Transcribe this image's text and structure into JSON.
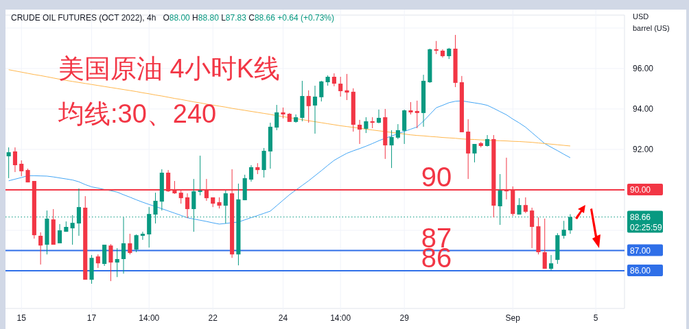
{
  "chart_data": {
    "type": "candlestick",
    "title": "CRUDE OIL FUTURES (OCT 2022), 4h",
    "subtitle": "O88.00 H88.80 L87.83 C88.66 +0.64 (+0.73%)",
    "ylabel": "USD barrel (US)",
    "annotations": [
      "美国原油 4小时K线",
      "均线:30、240",
      {
        "text": "90",
        "y": 90
      },
      {
        "text": "87",
        "y": 87
      },
      {
        "text": "86",
        "y": 86
      }
    ],
    "categories": [
      null,
      null,
      "15",
      null,
      null,
      null,
      null,
      null,
      null,
      null,
      null,
      null,
      null,
      "17",
      null,
      null,
      null,
      null,
      null,
      null,
      null,
      null,
      "14:00",
      null,
      null,
      null,
      null,
      null,
      null,
      null,
      null,
      null,
      "22",
      null,
      null,
      null,
      null,
      null,
      null,
      null,
      null,
      null,
      null,
      "24",
      null,
      null,
      null,
      null,
      null,
      null,
      null,
      null,
      "14:00",
      null,
      null,
      null,
      null,
      null,
      null,
      null,
      null,
      null,
      "29",
      null,
      null,
      null,
      null,
      null,
      null,
      null,
      null,
      null,
      null,
      null,
      null,
      null,
      null,
      null,
      null,
      "Sep",
      null,
      null,
      null,
      null,
      null,
      null,
      null,
      null,
      null,
      null,
      null,
      null,
      "5",
      null,
      null,
      null,
      null
    ],
    "ohlc": [
      [
        91.66,
        92.1,
        90.58,
        91.86
      ],
      [
        91.9,
        92.1,
        90.88,
        91.22
      ],
      [
        91.29,
        91.46,
        90.68,
        90.92
      ],
      [
        90.98,
        91.05,
        90.37,
        90.37
      ],
      [
        90.44,
        90.44,
        87.59,
        87.76
      ],
      [
        87.73,
        87.9,
        86.31,
        87.25
      ],
      [
        87.29,
        88.98,
        86.81,
        88.58
      ],
      [
        88.54,
        89.05,
        87.29,
        87.29
      ],
      [
        87.36,
        88.31,
        87.36,
        88.0
      ],
      [
        87.93,
        88.44,
        87.93,
        88.17
      ],
      [
        88.1,
        88.75,
        87.29,
        88.37
      ],
      [
        88.34,
        90.07,
        87.73,
        89.15
      ],
      [
        89.12,
        89.69,
        85.56,
        85.56
      ],
      [
        85.56,
        86.78,
        85.36,
        86.64
      ],
      [
        86.71,
        86.81,
        86.14,
        86.37
      ],
      [
        86.34,
        87.29,
        86.24,
        87.29
      ],
      [
        87.25,
        87.32,
        85.49,
        86.41
      ],
      [
        86.41,
        87.12,
        85.69,
        86.58
      ],
      [
        86.58,
        88.64,
        85.86,
        87.36
      ],
      [
        87.36,
        87.83,
        86.81,
        86.88
      ],
      [
        87.05,
        87.8,
        86.92,
        87.76
      ],
      [
        87.73,
        87.93,
        87.53,
        87.83
      ],
      [
        87.8,
        89.15,
        87.15,
        88.81
      ],
      [
        88.78,
        89.86,
        88.34,
        89.46
      ],
      [
        89.42,
        91.02,
        88.98,
        90.85
      ],
      [
        90.85,
        90.98,
        89.9,
        89.93
      ],
      [
        90.0,
        90.44,
        89.8,
        89.83
      ],
      [
        89.86,
        89.97,
        89.32,
        89.59
      ],
      [
        89.63,
        89.83,
        88.61,
        89.05
      ],
      [
        89.05,
        90.54,
        87.93,
        89.93
      ],
      [
        89.9,
        91.69,
        89.73,
        89.97
      ],
      [
        89.97,
        90.54,
        89.46,
        89.59
      ],
      [
        89.63,
        89.63,
        89.15,
        89.32
      ],
      [
        89.39,
        89.63,
        89.08,
        89.22
      ],
      [
        89.22,
        89.97,
        88.34,
        89.83
      ],
      [
        89.83,
        91.02,
        86.64,
        86.81
      ],
      [
        86.81,
        90.31,
        86.27,
        89.53
      ],
      [
        89.49,
        90.75,
        89.49,
        90.58
      ],
      [
        90.51,
        91.22,
        90.41,
        91.12
      ],
      [
        91.12,
        91.32,
        90.78,
        90.98
      ],
      [
        90.98,
        92.07,
        90.61,
        91.93
      ],
      [
        91.9,
        93.32,
        91.05,
        93.12
      ],
      [
        93.08,
        94.2,
        92.95,
        93.83
      ],
      [
        93.83,
        94.07,
        93.53,
        93.73
      ],
      [
        93.76,
        93.8,
        93.36,
        93.36
      ],
      [
        93.36,
        93.73,
        93.32,
        93.59
      ],
      [
        93.56,
        95.39,
        93.39,
        94.64
      ],
      [
        94.64,
        94.92,
        93.32,
        94.14
      ],
      [
        94.17,
        95.15,
        92.78,
        94.61
      ],
      [
        94.58,
        95.39,
        94.37,
        95.36
      ],
      [
        95.32,
        95.66,
        95.15,
        95.59
      ],
      [
        95.59,
        95.76,
        95.12,
        95.25
      ],
      [
        95.25,
        95.59,
        94.61,
        94.88
      ],
      [
        94.92,
        95.73,
        94.44,
        94.81
      ],
      [
        94.85,
        95.02,
        92.88,
        93.22
      ],
      [
        93.22,
        93.46,
        92.27,
        92.98
      ],
      [
        93.02,
        93.59,
        92.81,
        93.39
      ],
      [
        93.39,
        93.59,
        93.05,
        93.32
      ],
      [
        93.32,
        93.97,
        93.29,
        93.56
      ],
      [
        93.59,
        94.0,
        91.53,
        92.2
      ],
      [
        92.2,
        92.95,
        91.08,
        92.61
      ],
      [
        92.58,
        93.25,
        92.51,
        92.95
      ],
      [
        92.92,
        93.97,
        92.27,
        93.93
      ],
      [
        93.93,
        94.34,
        93.73,
        93.83
      ],
      [
        93.9,
        94.41,
        93.05,
        93.8
      ],
      [
        93.8,
        95.69,
        93.12,
        95.39
      ],
      [
        95.32,
        96.98,
        95.29,
        96.95
      ],
      [
        96.95,
        97.36,
        96.71,
        96.88
      ],
      [
        96.88,
        96.95,
        96.54,
        96.61
      ],
      [
        96.61,
        97.02,
        96.47,
        96.98
      ],
      [
        96.98,
        97.66,
        95.08,
        95.29
      ],
      [
        95.32,
        95.63,
        92.85,
        92.85
      ],
      [
        92.88,
        93.49,
        90.54,
        91.8
      ],
      [
        91.8,
        92.27,
        91.36,
        92.27
      ],
      [
        92.31,
        92.37,
        92.1,
        92.17
      ],
      [
        92.17,
        92.71,
        92.14,
        92.51
      ],
      [
        92.51,
        92.71,
        88.64,
        89.22
      ],
      [
        89.19,
        90.78,
        88.27,
        89.97
      ],
      [
        89.97,
        91.59,
        89.53,
        89.93
      ],
      [
        89.97,
        90.17,
        88.71,
        88.81
      ],
      [
        88.78,
        89.59,
        88.78,
        89.25
      ],
      [
        89.25,
        89.63,
        88.85,
        88.92
      ],
      [
        88.98,
        89.12,
        87.12,
        88.17
      ],
      [
        88.2,
        88.64,
        86.81,
        86.92
      ],
      [
        86.92,
        88.58,
        86.1,
        86.1
      ],
      [
        86.1,
        86.78,
        86.03,
        86.37
      ],
      [
        86.54,
        87.86,
        86.34,
        87.76
      ],
      [
        87.73,
        88.47,
        87.59,
        88.03
      ],
      [
        88.0,
        88.8,
        87.83,
        88.66
      ],
      null,
      null,
      null,
      null,
      null,
      null,
      null,
      null
    ],
    "colors": [
      "#089981",
      "#f23645",
      "#f23645",
      "#f23645",
      "#f23645",
      "#f23645",
      "#089981",
      "#f23645",
      "#089981",
      "#089981",
      "#089981",
      "#089981",
      "#f23645",
      "#089981",
      "#f23645",
      "#089981",
      "#f23645",
      "#089981",
      "#089981",
      "#f23645",
      "#089981",
      "#089981",
      "#089981",
      "#089981",
      "#089981",
      "#f23645",
      "#f23645",
      "#f23645",
      "#f23645",
      "#089981",
      "#089981",
      "#f23645",
      "#f23645",
      "#f23645",
      "#089981",
      "#f23645",
      "#089981",
      "#089981",
      "#089981",
      "#f23645",
      "#089981",
      "#089981",
      "#089981",
      "#f23645",
      "#f23645",
      "#089981",
      "#089981",
      "#f23645",
      "#089981",
      "#089981",
      "#089981",
      "#f23645",
      "#f23645",
      "#f23645",
      "#f23645",
      "#f23645",
      "#089981",
      "#f23645",
      "#089981",
      "#f23645",
      "#089981",
      "#089981",
      "#089981",
      "#f23645",
      "#f23645",
      "#089981",
      "#089981",
      "#f23645",
      "#f23645",
      "#089981",
      "#f23645",
      "#f23645",
      "#f23645",
      "#089981",
      "#f23645",
      "#089981",
      "#f23645",
      "#089981",
      "#f23645",
      "#f23645",
      "#089981",
      "#f23645",
      "#f23645",
      "#f23645",
      "#f23645",
      "#089981",
      "#089981",
      "#089981",
      "#089981",
      null,
      null,
      null,
      null,
      null,
      null,
      null,
      null
    ],
    "series": [
      {
        "type": "line",
        "color": "#42a5f5",
        "values": [
          90.45,
          90.53,
          90.61,
          90.7,
          90.7,
          90.69,
          90.68,
          90.64,
          90.59,
          90.54,
          90.49,
          90.4,
          90.26,
          90.15,
          90.09,
          90.02,
          89.96,
          89.89,
          89.76,
          89.64,
          89.51,
          89.39,
          89.28,
          89.18,
          89.07,
          88.96,
          88.85,
          88.74,
          88.62,
          88.56,
          88.5,
          88.44,
          88.37,
          88.31,
          88.34,
          88.38,
          88.41,
          88.52,
          88.63,
          88.73,
          88.84,
          88.95,
          89.22,
          89.49,
          89.76,
          89.99,
          90.22,
          90.45,
          90.7,
          90.95,
          91.21,
          91.46,
          91.64,
          91.81,
          91.93,
          92.04,
          92.16,
          92.29,
          92.43,
          92.55,
          92.66,
          92.78,
          92.89,
          93.0,
          93.11,
          93.4,
          93.73,
          94.06,
          94.18,
          94.31,
          94.38,
          94.4,
          94.35,
          94.3,
          94.25,
          94.18,
          94.03,
          93.87,
          93.71,
          93.5,
          93.31,
          93.1,
          92.83,
          92.56,
          92.29,
          92.11,
          91.94,
          91.76,
          91.59,
          null,
          null,
          null,
          null,
          null,
          null,
          null,
          null
        ]
      },
      {
        "type": "line",
        "color": "#ffb74d",
        "values": [
          95.94,
          95.88,
          95.82,
          95.76,
          95.7,
          95.65,
          95.59,
          95.53,
          95.47,
          95.41,
          95.36,
          95.31,
          95.26,
          95.21,
          95.16,
          95.11,
          95.06,
          95.01,
          94.96,
          94.91,
          94.86,
          94.8,
          94.75,
          94.69,
          94.64,
          94.58,
          94.52,
          94.47,
          94.41,
          94.35,
          94.3,
          94.24,
          94.19,
          94.14,
          94.09,
          94.03,
          93.98,
          93.93,
          93.88,
          93.83,
          93.78,
          93.73,
          93.67,
          93.62,
          93.57,
          93.52,
          93.47,
          93.42,
          93.37,
          93.32,
          93.27,
          93.22,
          93.17,
          93.13,
          93.09,
          93.05,
          93.0,
          92.96,
          92.92,
          92.88,
          92.84,
          92.8,
          92.76,
          92.72,
          92.69,
          92.67,
          92.64,
          92.62,
          92.59,
          92.57,
          92.55,
          92.52,
          92.5,
          92.49,
          92.47,
          92.46,
          92.44,
          92.43,
          92.42,
          92.4,
          92.39,
          92.37,
          92.35,
          92.32,
          92.29,
          92.26,
          92.23,
          92.2,
          92.17,
          null,
          null,
          null,
          null,
          null,
          null,
          null,
          null
        ]
      }
    ],
    "ylim": [
      84.14,
      98.64
    ],
    "yticks": [
      {
        "value": 86,
        "label": null
      },
      {
        "value": 88,
        "label": null
      },
      {
        "value": 90,
        "label": null
      },
      {
        "value": 92,
        "label": "92.00"
      },
      {
        "value": 94,
        "label": "94.00"
      },
      {
        "value": 96,
        "label": "96.00"
      },
      {
        "value": 98,
        "label": null
      }
    ],
    "grid": true,
    "ref_lines": [
      {
        "axis": "y",
        "value": 90,
        "label": "90.00",
        "color": "#f23645",
        "line_style": "solid"
      },
      {
        "axis": "y",
        "value": 87,
        "label": "87.00",
        "color": "#2f6fe8",
        "line_style": "solid"
      },
      {
        "axis": "y",
        "value": 86,
        "label": "86.00",
        "color": "#2f6fe8",
        "line_style": "solid"
      },
      {
        "axis": "y",
        "value": 88.66,
        "label": "88.66 02:25:59",
        "color": "#089981",
        "line_style": "dotted"
      }
    ]
  }
}
